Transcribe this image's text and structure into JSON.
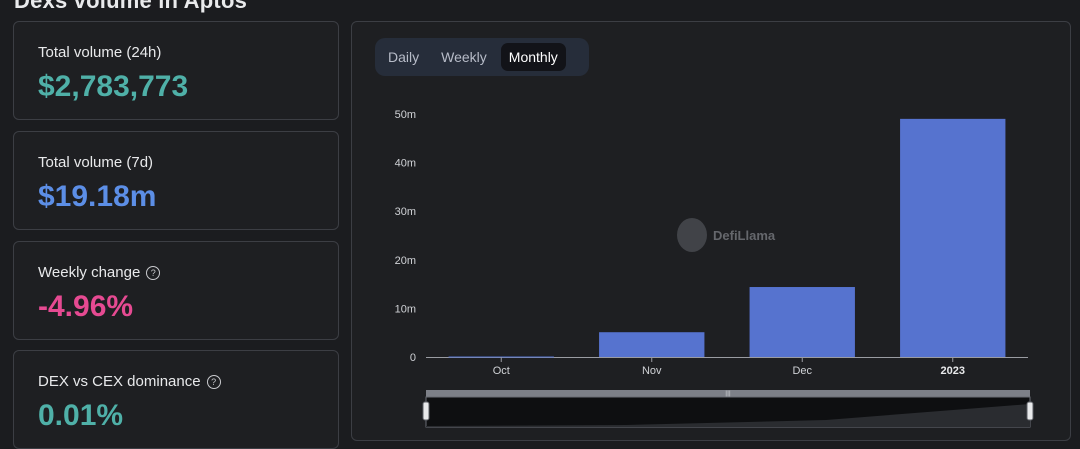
{
  "page": {
    "title": "Dexs volume in Aptos"
  },
  "stats": [
    {
      "label": "Total volume (24h)",
      "value": "$2,783,773",
      "color": "#4fb0a8",
      "help": false
    },
    {
      "label": "Total volume (7d)",
      "value": "$19.18m",
      "color": "#5c8ee6",
      "help": true
    },
    {
      "label": "Weekly change",
      "value": "-4.96%",
      "color": "#e64a92",
      "help": true
    },
    {
      "label": "DEX vs CEX dominance",
      "value": "0.01%",
      "color": "#4fb0a8",
      "help": true
    }
  ],
  "tabs": [
    {
      "label": "Daily",
      "active": false
    },
    {
      "label": "Weekly",
      "active": false
    },
    {
      "label": "Monthly",
      "active": true
    }
  ],
  "watermark": {
    "text": "DefiLlama"
  },
  "chart_data": {
    "type": "bar",
    "categories": [
      "Oct",
      "Nov",
      "Dec",
      "2023"
    ],
    "values": [
      0.1,
      5.1,
      14.4,
      49.0
    ],
    "ylim": [
      0,
      50
    ],
    "y_ticks": [
      "0",
      "10m",
      "20m",
      "30m",
      "40m",
      "50m"
    ],
    "grid": false,
    "bar_color": "#5673cf"
  }
}
